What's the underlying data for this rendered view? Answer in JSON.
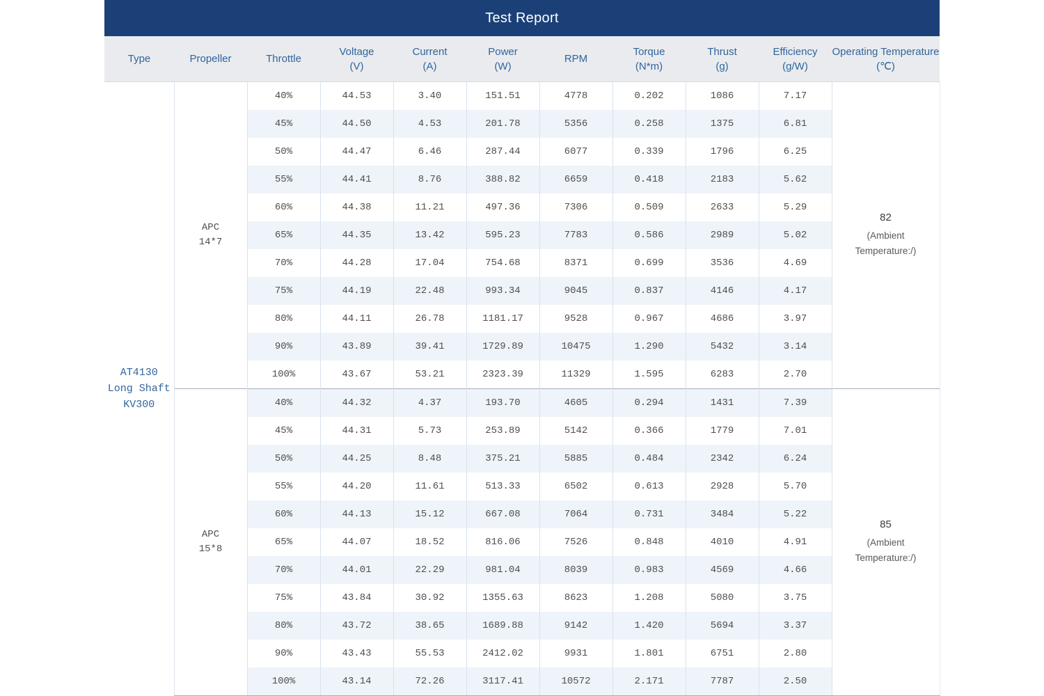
{
  "title": "Test Report",
  "columns": [
    {
      "label": "Type",
      "unit": ""
    },
    {
      "label": "Propeller",
      "unit": ""
    },
    {
      "label": "Throttle",
      "unit": ""
    },
    {
      "label": "Voltage",
      "unit": "(V)"
    },
    {
      "label": "Current",
      "unit": "(A)"
    },
    {
      "label": "Power",
      "unit": "(W)"
    },
    {
      "label": "RPM",
      "unit": ""
    },
    {
      "label": "Torque",
      "unit": "(N*m)"
    },
    {
      "label": "Thrust",
      "unit": "(g)"
    },
    {
      "label": "Efficiency",
      "unit": "(g/W)"
    },
    {
      "label": "Operating Temperature",
      "unit": "(℃)"
    }
  ],
  "type_lines": [
    "AT4130",
    "Long Shaft",
    "KV300"
  ],
  "colors": {
    "title_bar": "#1b4078",
    "header_bg": "#e9ebee",
    "header_text": "#31659f",
    "stripe": "#eef4f9",
    "cell_border": "#d9e2ec",
    "section_divider": "#a4aeb9",
    "data_text": "#4f4f4f"
  },
  "sections": [
    {
      "propeller_lines": [
        "APC",
        "14*7"
      ],
      "temperature": {
        "value": "82",
        "note_lines": [
          "(Ambient",
          "Temperature:/)"
        ]
      },
      "rows": [
        [
          "40%",
          "44.53",
          "3.40",
          "151.51",
          "4778",
          "0.202",
          "1086",
          "7.17"
        ],
        [
          "45%",
          "44.50",
          "4.53",
          "201.78",
          "5356",
          "0.258",
          "1375",
          "6.81"
        ],
        [
          "50%",
          "44.47",
          "6.46",
          "287.44",
          "6077",
          "0.339",
          "1796",
          "6.25"
        ],
        [
          "55%",
          "44.41",
          "8.76",
          "388.82",
          "6659",
          "0.418",
          "2183",
          "5.62"
        ],
        [
          "60%",
          "44.38",
          "11.21",
          "497.36",
          "7306",
          "0.509",
          "2633",
          "5.29"
        ],
        [
          "65%",
          "44.35",
          "13.42",
          "595.23",
          "7783",
          "0.586",
          "2989",
          "5.02"
        ],
        [
          "70%",
          "44.28",
          "17.04",
          "754.68",
          "8371",
          "0.699",
          "3536",
          "4.69"
        ],
        [
          "75%",
          "44.19",
          "22.48",
          "993.34",
          "9045",
          "0.837",
          "4146",
          "4.17"
        ],
        [
          "80%",
          "44.11",
          "26.78",
          "1181.17",
          "9528",
          "0.967",
          "4686",
          "3.97"
        ],
        [
          "90%",
          "43.89",
          "39.41",
          "1729.89",
          "10475",
          "1.290",
          "5432",
          "3.14"
        ],
        [
          "100%",
          "43.67",
          "53.21",
          "2323.39",
          "11329",
          "1.595",
          "6283",
          "2.70"
        ]
      ]
    },
    {
      "propeller_lines": [
        "APC",
        "15*8"
      ],
      "temperature": {
        "value": "85",
        "note_lines": [
          "(Ambient",
          "Temperature:/)"
        ]
      },
      "rows": [
        [
          "40%",
          "44.32",
          "4.37",
          "193.70",
          "4605",
          "0.294",
          "1431",
          "7.39"
        ],
        [
          "45%",
          "44.31",
          "5.73",
          "253.89",
          "5142",
          "0.366",
          "1779",
          "7.01"
        ],
        [
          "50%",
          "44.25",
          "8.48",
          "375.21",
          "5885",
          "0.484",
          "2342",
          "6.24"
        ],
        [
          "55%",
          "44.20",
          "11.61",
          "513.33",
          "6502",
          "0.613",
          "2928",
          "5.70"
        ],
        [
          "60%",
          "44.13",
          "15.12",
          "667.08",
          "7064",
          "0.731",
          "3484",
          "5.22"
        ],
        [
          "65%",
          "44.07",
          "18.52",
          "816.06",
          "7526",
          "0.848",
          "4010",
          "4.91"
        ],
        [
          "70%",
          "44.01",
          "22.29",
          "981.04",
          "8039",
          "0.983",
          "4569",
          "4.66"
        ],
        [
          "75%",
          "43.84",
          "30.92",
          "1355.63",
          "8623",
          "1.208",
          "5080",
          "3.75"
        ],
        [
          "80%",
          "43.72",
          "38.65",
          "1689.88",
          "9142",
          "1.420",
          "5694",
          "3.37"
        ],
        [
          "90%",
          "43.43",
          "55.53",
          "2412.02",
          "9931",
          "1.801",
          "6751",
          "2.80"
        ],
        [
          "100%",
          "43.14",
          "72.26",
          "3117.41",
          "10572",
          "2.171",
          "7787",
          "2.50"
        ]
      ]
    }
  ]
}
